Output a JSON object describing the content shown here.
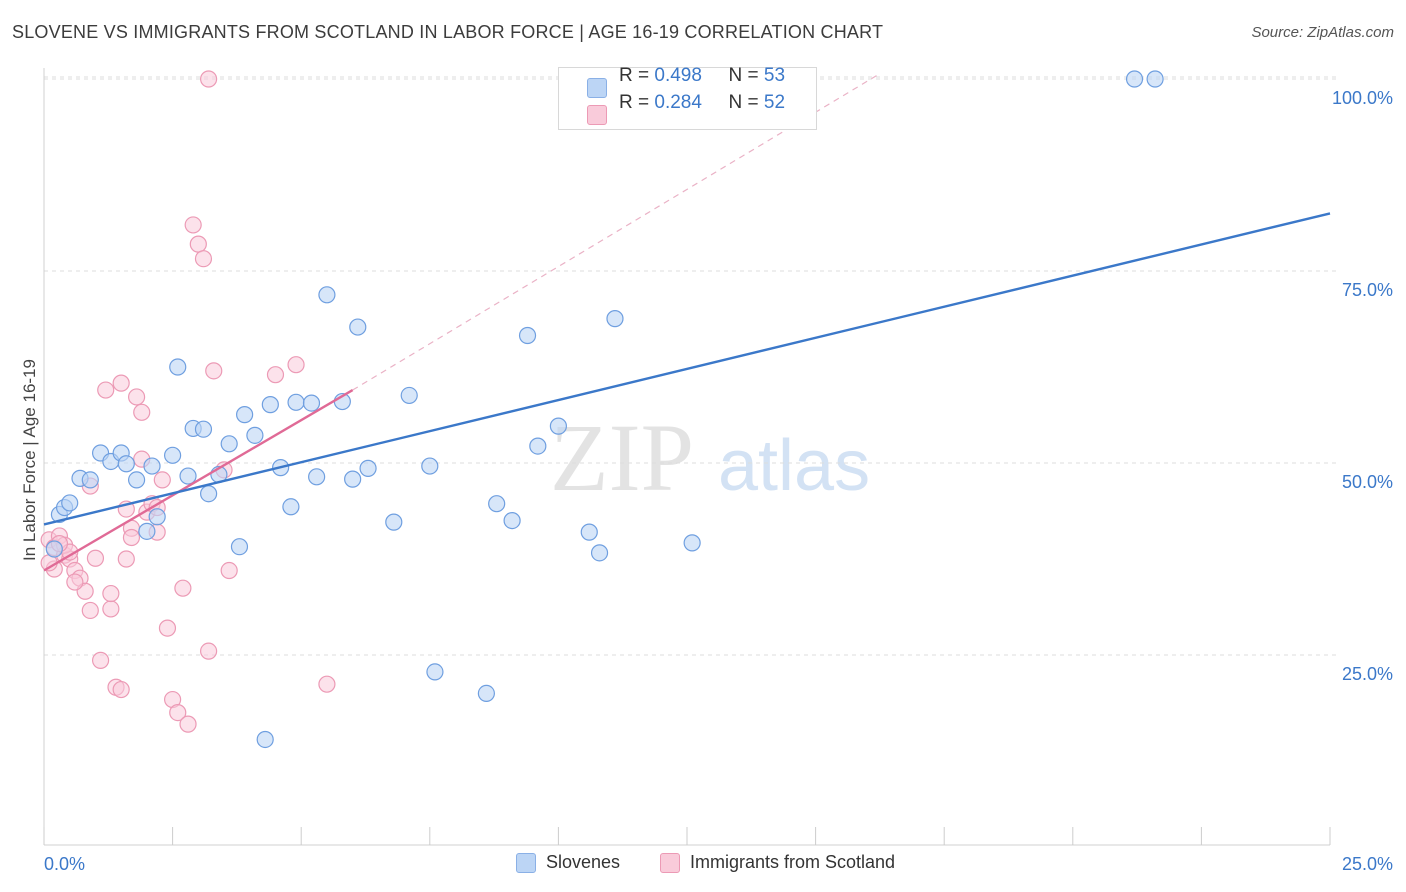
{
  "title": "SLOVENE VS IMMIGRANTS FROM SCOTLAND IN LABOR FORCE | AGE 16-19 CORRELATION CHART",
  "source": "Source: ZipAtlas.com",
  "watermark": {
    "zip": "ZIP",
    "atlas": "atlas"
  },
  "stats": [
    {
      "r_label": "R =",
      "r_value": "0.498",
      "n_label": "N =",
      "n_value": "53"
    },
    {
      "r_label": "R =",
      "r_value": "0.284",
      "n_label": "N =",
      "n_value": "52"
    }
  ],
  "colors": {
    "blue": "#3b78c9",
    "blue_fill": "#bcd5f5",
    "pink": "#e06a96",
    "pink_fill": "#f9cbda",
    "grid": "#dddddd"
  },
  "chart_data": {
    "type": "scatter",
    "title": "SLOVENE VS IMMIGRANTS FROM SCOTLAND IN LABOR FORCE | AGE 16-19 CORRELATION CHART",
    "xlabel": "",
    "ylabel": "In Labor Force | Age 16-19",
    "xlim": [
      0,
      25
    ],
    "ylim": [
      0,
      102
    ],
    "x_tick_labels": [
      "0.0%",
      "25.0%"
    ],
    "y_ticks": [
      25,
      50,
      75,
      100
    ],
    "y_tick_labels": [
      "25.0%",
      "50.0%",
      "75.0%",
      "100.0%"
    ],
    "grid": true,
    "legend_position": "bottom",
    "series": [
      {
        "name": "Slovenes",
        "color": "#3b78c9",
        "points": [
          [
            0.3,
            43.3
          ],
          [
            0.4,
            44.2
          ],
          [
            0.5,
            44.8
          ],
          [
            0.7,
            48.0
          ],
          [
            0.9,
            47.8
          ],
          [
            1.1,
            51.3
          ],
          [
            1.3,
            50.2
          ],
          [
            1.5,
            51.3
          ],
          [
            1.6,
            49.9
          ],
          [
            1.8,
            47.8
          ],
          [
            2.0,
            41.1
          ],
          [
            2.1,
            49.6
          ],
          [
            2.2,
            43.0
          ],
          [
            2.5,
            51.0
          ],
          [
            2.6,
            62.5
          ],
          [
            2.8,
            48.3
          ],
          [
            2.9,
            54.5
          ],
          [
            3.1,
            54.4
          ],
          [
            3.2,
            46.0
          ],
          [
            3.4,
            48.5
          ],
          [
            3.6,
            52.5
          ],
          [
            3.8,
            39.1
          ],
          [
            3.9,
            56.3
          ],
          [
            4.1,
            53.6
          ],
          [
            4.4,
            57.6
          ],
          [
            4.6,
            49.4
          ],
          [
            4.8,
            44.3
          ],
          [
            4.9,
            57.9
          ],
          [
            5.2,
            57.8
          ],
          [
            5.3,
            48.2
          ],
          [
            5.5,
            71.9
          ],
          [
            5.8,
            58.0
          ],
          [
            6.0,
            47.9
          ],
          [
            6.1,
            67.7
          ],
          [
            6.3,
            49.3
          ],
          [
            6.8,
            42.3
          ],
          [
            7.1,
            58.8
          ],
          [
            7.5,
            49.6
          ],
          [
            7.6,
            22.8
          ],
          [
            8.6,
            20.0
          ],
          [
            8.8,
            44.7
          ],
          [
            9.1,
            42.5
          ],
          [
            9.4,
            66.6
          ],
          [
            9.6,
            52.2
          ],
          [
            10.0,
            54.8
          ],
          [
            10.6,
            41.0
          ],
          [
            10.8,
            38.3
          ],
          [
            11.1,
            68.8
          ],
          [
            12.6,
            39.6
          ],
          [
            4.3,
            14.0
          ],
          [
            21.2,
            100.0
          ],
          [
            21.6,
            100.0
          ],
          [
            0.2,
            38.8
          ]
        ],
        "trend": {
          "x": [
            0,
            25
          ],
          "y": [
            42.0,
            82.5
          ]
        }
      },
      {
        "name": "Immigrants from Scotland",
        "color": "#e06a96",
        "points": [
          [
            0.1,
            40.0
          ],
          [
            0.2,
            39.0
          ],
          [
            0.3,
            40.5
          ],
          [
            0.4,
            38.0
          ],
          [
            0.5,
            37.5
          ],
          [
            0.6,
            36.0
          ],
          [
            0.7,
            35.0
          ],
          [
            0.8,
            33.3
          ],
          [
            0.9,
            30.8
          ],
          [
            1.0,
            37.6
          ],
          [
            1.1,
            24.3
          ],
          [
            1.2,
            59.5
          ],
          [
            1.3,
            31.0
          ],
          [
            1.4,
            20.8
          ],
          [
            1.5,
            60.4
          ],
          [
            1.6,
            44.0
          ],
          [
            1.7,
            41.5
          ],
          [
            1.8,
            58.6
          ],
          [
            1.9,
            56.6
          ],
          [
            2.0,
            43.6
          ],
          [
            2.1,
            44.7
          ],
          [
            2.2,
            41.0
          ],
          [
            2.3,
            47.8
          ],
          [
            2.4,
            28.5
          ],
          [
            2.5,
            19.2
          ],
          [
            2.6,
            17.5
          ],
          [
            2.7,
            33.7
          ],
          [
            2.8,
            16.0
          ],
          [
            2.9,
            81.0
          ],
          [
            3.0,
            78.5
          ],
          [
            3.1,
            76.6
          ],
          [
            3.2,
            25.5
          ],
          [
            3.3,
            62.0
          ],
          [
            3.5,
            49.1
          ],
          [
            3.6,
            36.0
          ],
          [
            3.2,
            100.0
          ],
          [
            4.5,
            61.5
          ],
          [
            4.9,
            62.8
          ],
          [
            5.5,
            21.2
          ],
          [
            1.5,
            20.5
          ],
          [
            0.9,
            47.0
          ],
          [
            1.9,
            50.5
          ],
          [
            1.3,
            33.0
          ],
          [
            1.6,
            37.5
          ],
          [
            2.2,
            44.2
          ],
          [
            0.6,
            34.5
          ],
          [
            1.7,
            40.3
          ],
          [
            0.4,
            39.3
          ],
          [
            0.2,
            36.2
          ],
          [
            0.5,
            38.4
          ],
          [
            0.1,
            37.0
          ],
          [
            0.3,
            39.5
          ]
        ],
        "trend": {
          "x": [
            0,
            6
          ],
          "y": [
            36.0,
            59.5
          ]
        },
        "trend_ext": {
          "x": [
            6,
            16.2
          ],
          "y": [
            59.5,
            100.5
          ]
        }
      }
    ]
  }
}
